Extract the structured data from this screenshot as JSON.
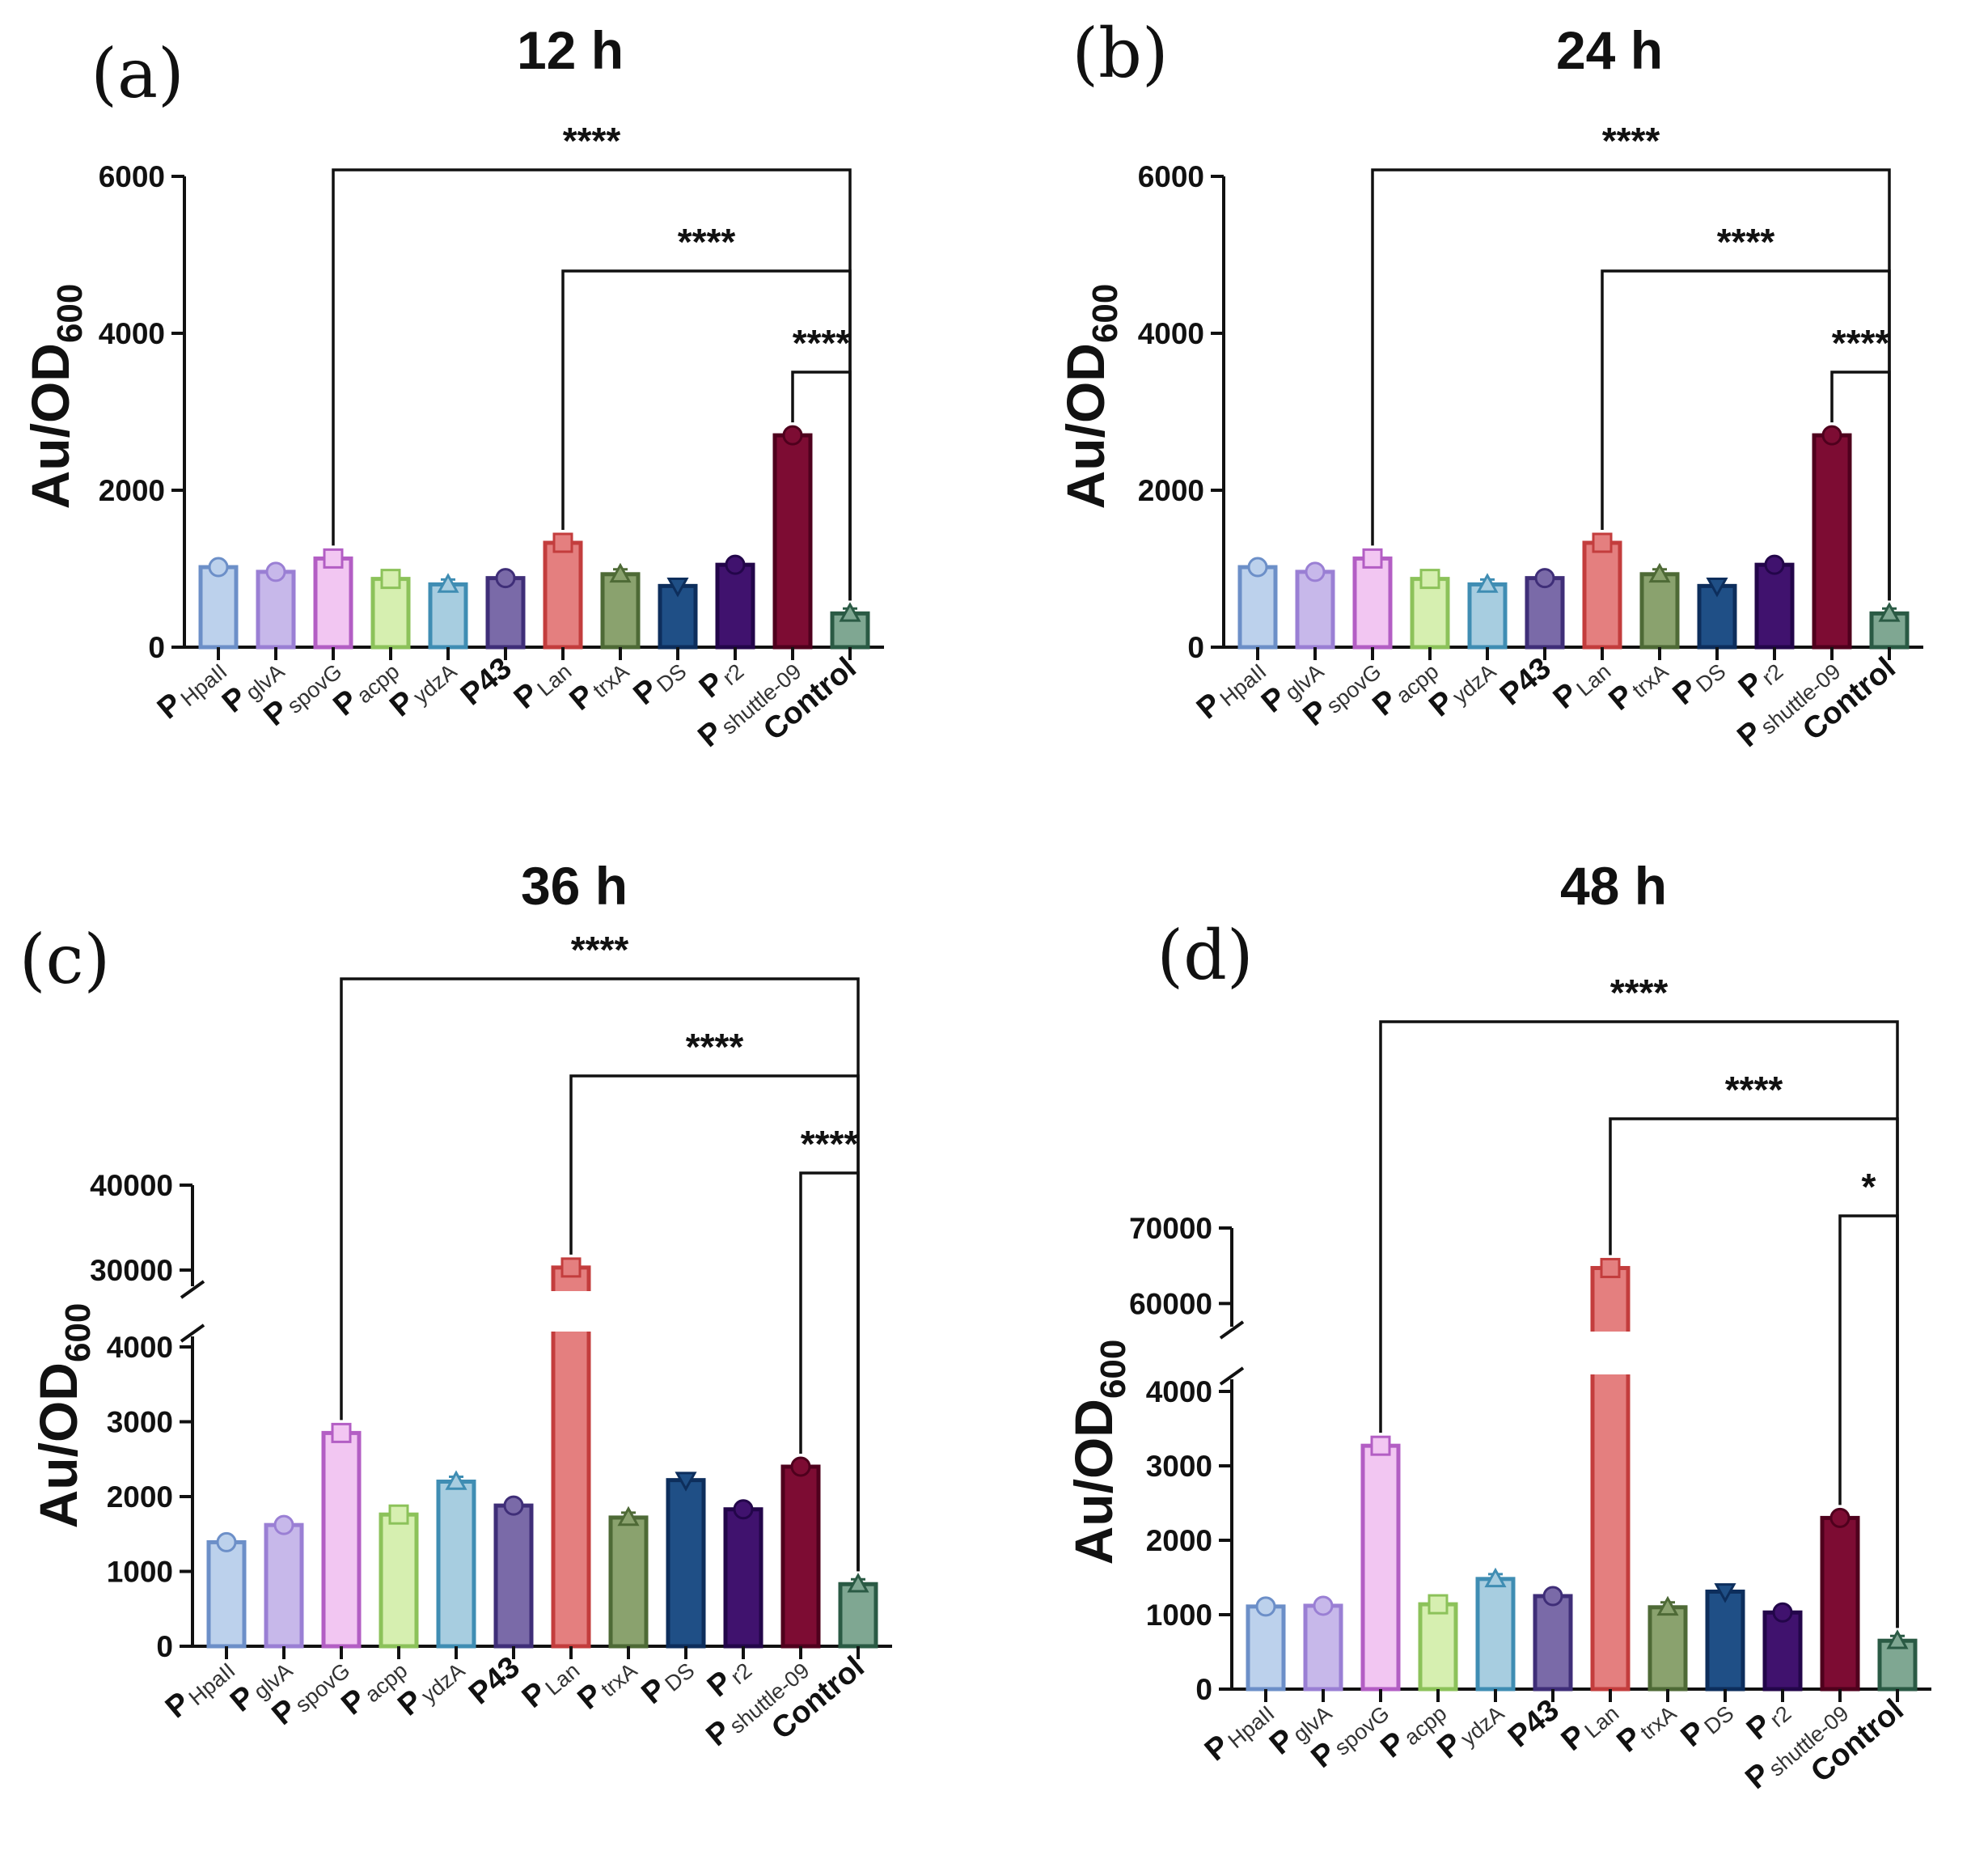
{
  "chart_data": [
    {
      "type": "bar",
      "panel": "(a)",
      "title": "12 h",
      "ylabel": "Au/OD",
      "ylabel_sub": "600",
      "ylim": [
        0,
        6000
      ],
      "yticks": [
        0,
        2000,
        4000,
        6000
      ],
      "categories": [
        {
          "main": "P",
          "sub": "HpaII"
        },
        {
          "main": "P",
          "sub": "glvA"
        },
        {
          "main": "P",
          "sub": "spovG"
        },
        {
          "main": "P",
          "sub": "acpp"
        },
        {
          "main": "P",
          "sub": "ydzA"
        },
        {
          "main": "P43",
          "sub": ""
        },
        {
          "main": "P",
          "sub": "Lan"
        },
        {
          "main": "P",
          "sub": "trxA"
        },
        {
          "main": "P",
          "sub": "DS"
        },
        {
          "main": "P",
          "sub": "r2"
        },
        {
          "main": "P",
          "sub": "shuttle-09"
        },
        {
          "main": "Control",
          "sub": ""
        }
      ],
      "values": [
        1020,
        960,
        1130,
        870,
        800,
        880,
        1330,
        930,
        780,
        1050,
        2700,
        430
      ],
      "significance": [
        {
          "from": 2,
          "to": 11,
          "label": "****"
        },
        {
          "from": 6,
          "to": 11,
          "label": "****"
        },
        {
          "from": 10,
          "to": 11,
          "label": "****"
        }
      ]
    },
    {
      "type": "bar",
      "panel": "(b)",
      "title": "24 h",
      "ylabel": "Au/OD",
      "ylabel_sub": "600",
      "ylim": [
        0,
        6000
      ],
      "yticks": [
        0,
        2000,
        4000,
        6000
      ],
      "categories": [
        {
          "main": "P",
          "sub": "HpaII"
        },
        {
          "main": "P",
          "sub": "glvA"
        },
        {
          "main": "P",
          "sub": "spovG"
        },
        {
          "main": "P",
          "sub": "acpp"
        },
        {
          "main": "P",
          "sub": "ydzA"
        },
        {
          "main": "P43",
          "sub": ""
        },
        {
          "main": "P",
          "sub": "Lan"
        },
        {
          "main": "P",
          "sub": "trxA"
        },
        {
          "main": "P",
          "sub": "DS"
        },
        {
          "main": "P",
          "sub": "r2"
        },
        {
          "main": "P",
          "sub": "shuttle-09"
        },
        {
          "main": "Control",
          "sub": ""
        }
      ],
      "values": [
        1020,
        960,
        1130,
        870,
        800,
        880,
        1330,
        930,
        780,
        1050,
        2700,
        430
      ],
      "significance": [
        {
          "from": 2,
          "to": 11,
          "label": "****"
        },
        {
          "from": 6,
          "to": 11,
          "label": "****"
        },
        {
          "from": 10,
          "to": 11,
          "label": "****"
        }
      ]
    },
    {
      "type": "bar",
      "panel": "(c)",
      "title": "36 h",
      "ylabel": "Au/OD",
      "ylabel_sub": "600",
      "ylim": [
        0,
        40000
      ],
      "axis_break": {
        "lower": [
          0,
          4000
        ],
        "upper": [
          30000,
          40000
        ]
      },
      "yticks": [
        0,
        1000,
        2000,
        3000,
        4000,
        30000,
        40000
      ],
      "categories": [
        {
          "main": "P",
          "sub": "HpaII"
        },
        {
          "main": "P",
          "sub": "glvA"
        },
        {
          "main": "P",
          "sub": "spovG"
        },
        {
          "main": "P",
          "sub": "acpp"
        },
        {
          "main": "P",
          "sub": "ydzA"
        },
        {
          "main": "P43",
          "sub": ""
        },
        {
          "main": "P",
          "sub": "Lan"
        },
        {
          "main": "P",
          "sub": "trxA"
        },
        {
          "main": "P",
          "sub": "DS"
        },
        {
          "main": "P",
          "sub": "r2"
        },
        {
          "main": "P",
          "sub": "shuttle-09"
        },
        {
          "main": "Control",
          "sub": ""
        }
      ],
      "values": [
        1390,
        1620,
        2850,
        1760,
        2200,
        1880,
        30300,
        1720,
        2220,
        1830,
        2400,
        830
      ],
      "significance": [
        {
          "from": 2,
          "to": 11,
          "label": "****"
        },
        {
          "from": 6,
          "to": 11,
          "label": "****"
        },
        {
          "from": 10,
          "to": 11,
          "label": "****"
        }
      ]
    },
    {
      "type": "bar",
      "panel": "(d)",
      "title": "48 h",
      "ylabel": "Au/OD",
      "ylabel_sub": "600",
      "ylim": [
        0,
        70000
      ],
      "axis_break": {
        "lower": [
          0,
          4000
        ],
        "upper": [
          55000,
          70000
        ]
      },
      "yticks": [
        0,
        1000,
        2000,
        3000,
        4000,
        60000,
        70000
      ],
      "categories": [
        {
          "main": "P",
          "sub": "HpaII"
        },
        {
          "main": "P",
          "sub": "glvA"
        },
        {
          "main": "P",
          "sub": "spovG"
        },
        {
          "main": "P",
          "sub": "acpp"
        },
        {
          "main": "P",
          "sub": "ydzA"
        },
        {
          "main": "P43",
          "sub": ""
        },
        {
          "main": "P",
          "sub": "Lan"
        },
        {
          "main": "P",
          "sub": "trxA"
        },
        {
          "main": "P",
          "sub": "DS"
        },
        {
          "main": "P",
          "sub": "r2"
        },
        {
          "main": "P",
          "sub": "shuttle-09"
        },
        {
          "main": "Control",
          "sub": ""
        }
      ],
      "values": [
        1110,
        1120,
        3270,
        1140,
        1480,
        1250,
        64700,
        1100,
        1310,
        1030,
        2300,
        650
      ],
      "significance": [
        {
          "from": 2,
          "to": 11,
          "label": "****"
        },
        {
          "from": 6,
          "to": 11,
          "label": "****"
        },
        {
          "from": 10,
          "to": 11,
          "label": "*"
        }
      ]
    }
  ],
  "style": {
    "bar_fill": [
      "#bcd1ec",
      "#c7b8ea",
      "#f2c6f2",
      "#d6efb0",
      "#a7cde0",
      "#7a6aa8",
      "#e47f7f",
      "#8aa26e",
      "#1f4f86",
      "#40126e",
      "#7d0c33",
      "#7fa792"
    ],
    "bar_edge": [
      "#6c8fc8",
      "#9a7fd4",
      "#b35ec4",
      "#8cc25a",
      "#3f8db3",
      "#3f2e78",
      "#c33d3d",
      "#4e6a36",
      "#0d2e5c",
      "#23064a",
      "#4f001d",
      "#2a5a44"
    ],
    "markers": [
      "circle",
      "circle",
      "square",
      "square",
      "triangle",
      "circle",
      "square",
      "triangle",
      "triangle-down",
      "circle",
      "circle",
      "triangle"
    ]
  }
}
